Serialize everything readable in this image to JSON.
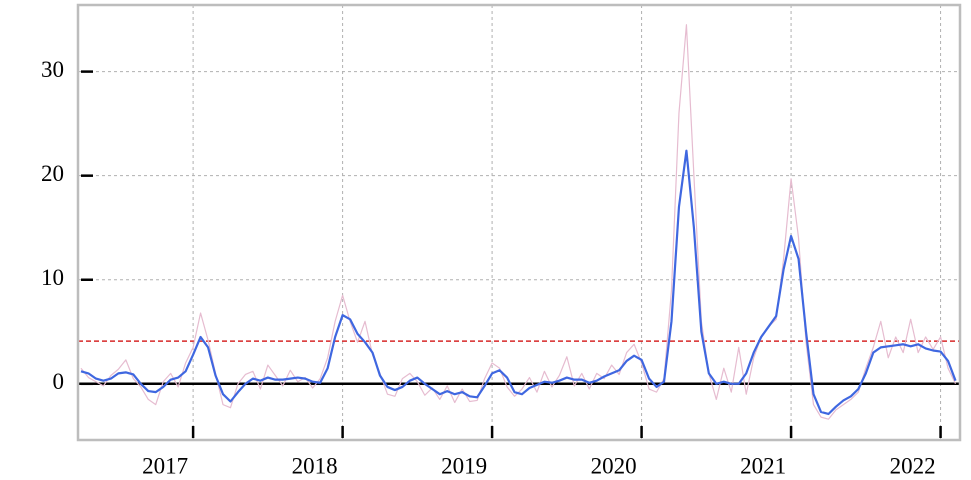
{
  "chart_data": {
    "type": "line",
    "x": [
      2016.25,
      2016.3,
      2016.35,
      2016.4,
      2016.45,
      2016.5,
      2016.55,
      2016.6,
      2016.65,
      2016.7,
      2016.75,
      2016.8,
      2016.85,
      2016.9,
      2016.95,
      2017,
      2017.05,
      2017.1,
      2017.15,
      2017.2,
      2017.25,
      2017.3,
      2017.35,
      2017.4,
      2017.45,
      2017.5,
      2017.55,
      2017.6,
      2017.65,
      2017.7,
      2017.75,
      2017.8,
      2017.85,
      2017.9,
      2017.95,
      2018,
      2018.05,
      2018.1,
      2018.15,
      2018.2,
      2018.25,
      2018.3,
      2018.35,
      2018.4,
      2018.45,
      2018.5,
      2018.55,
      2018.6,
      2018.65,
      2018.7,
      2018.75,
      2018.8,
      2018.85,
      2018.9,
      2018.95,
      2019,
      2019.05,
      2019.1,
      2019.15,
      2019.2,
      2019.25,
      2019.3,
      2019.35,
      2019.4,
      2019.45,
      2019.5,
      2019.55,
      2019.6,
      2019.65,
      2019.7,
      2019.75,
      2019.8,
      2019.85,
      2019.9,
      2019.95,
      2020,
      2020.05,
      2020.1,
      2020.15,
      2020.2,
      2020.25,
      2020.3,
      2020.35,
      2020.4,
      2020.45,
      2020.5,
      2020.55,
      2020.6,
      2020.65,
      2020.7,
      2020.75,
      2020.8,
      2020.85,
      2020.9,
      2020.95,
      2021,
      2021.05,
      2021.1,
      2021.15,
      2021.2,
      2021.25,
      2021.3,
      2021.35,
      2021.4,
      2021.45,
      2021.5,
      2021.55,
      2021.6,
      2021.65,
      2021.7,
      2021.75,
      2021.8,
      2021.85,
      2021.9,
      2021.95,
      2022,
      2022.05,
      2022.1
    ],
    "series": [
      {
        "color": "#e6bcd0",
        "width": 1.2,
        "values": [
          1.5,
          0.6,
          0.2,
          -0.2,
          0.8,
          1.4,
          2.3,
          0.5,
          -0.3,
          -1.5,
          -2.0,
          0.2,
          1.0,
          -0.3,
          2.0,
          3.5,
          6.8,
          4.2,
          1.0,
          -2.0,
          -2.3,
          0.0,
          0.9,
          1.2,
          -0.5,
          1.8,
          0.8,
          -0.2,
          1.3,
          0.2,
          0.6,
          -0.4,
          0.5,
          2.5,
          6.0,
          8.5,
          6.0,
          4.0,
          6.0,
          2.8,
          1.0,
          -1.0,
          -1.2,
          0.5,
          1.0,
          0.2,
          -1.1,
          -0.4,
          -1.5,
          -0.2,
          -1.8,
          -0.5,
          -1.7,
          -1.6,
          0.5,
          2.0,
          1.5,
          -0.3,
          -1.2,
          -0.5,
          0.6,
          -0.8,
          1.2,
          -0.3,
          0.8,
          2.6,
          -0.2,
          1.0,
          -0.5,
          1.0,
          0.5,
          1.8,
          0.9,
          3.0,
          3.8,
          2.0,
          -0.5,
          -0.8,
          0.5,
          9.0,
          26.0,
          34.5,
          20.0,
          6.0,
          1.0,
          -1.5,
          1.5,
          -0.8,
          3.5,
          -1.0,
          2.5,
          4.5,
          5.5,
          6.2,
          12.0,
          19.7,
          14.0,
          4.0,
          -2.0,
          -3.2,
          -3.4,
          -2.5,
          -2.0,
          -1.5,
          -0.8,
          1.5,
          3.5,
          6.0,
          2.5,
          4.5,
          3.0,
          6.2,
          3.0,
          4.5,
          3.3,
          4.5,
          1.5,
          0.0
        ]
      },
      {
        "color": "#3f67e0",
        "width": 2.2,
        "values": [
          1.2,
          1.0,
          0.5,
          0.3,
          0.5,
          1.0,
          1.1,
          0.9,
          0.0,
          -0.7,
          -0.8,
          -0.3,
          0.4,
          0.6,
          1.2,
          2.8,
          4.5,
          3.5,
          0.8,
          -1.0,
          -1.7,
          -0.8,
          0.0,
          0.5,
          0.3,
          0.6,
          0.4,
          0.4,
          0.5,
          0.6,
          0.5,
          0.2,
          0.1,
          1.5,
          4.5,
          6.6,
          6.2,
          4.8,
          4.0,
          3.0,
          0.8,
          -0.3,
          -0.6,
          -0.3,
          0.3,
          0.6,
          0.0,
          -0.5,
          -1.0,
          -0.7,
          -1.0,
          -0.8,
          -1.2,
          -1.3,
          -0.2,
          1.0,
          1.3,
          0.6,
          -0.8,
          -1.0,
          -0.4,
          -0.1,
          0.2,
          0.1,
          0.3,
          0.6,
          0.4,
          0.4,
          0.1,
          0.3,
          0.7,
          1.0,
          1.3,
          2.2,
          2.7,
          2.3,
          0.5,
          -0.3,
          0.2,
          6.0,
          17.0,
          22.4,
          15.0,
          5.0,
          1.0,
          0.0,
          0.2,
          0.0,
          0.0,
          1.0,
          3.0,
          4.5,
          5.5,
          6.5,
          11.0,
          14.2,
          12.0,
          5.0,
          -1.0,
          -2.7,
          -2.9,
          -2.2,
          -1.6,
          -1.2,
          -0.5,
          1.0,
          3.0,
          3.5,
          3.6,
          3.7,
          3.8,
          3.6,
          3.8,
          3.4,
          3.2,
          3.1,
          2.2,
          0.3
        ]
      }
    ],
    "reference_lines": [
      {
        "value": 4.1,
        "color": "#d62728",
        "dashed": true
      },
      {
        "value": 0,
        "color": "#000000",
        "dashed": false
      }
    ],
    "xlim": [
      2016.23,
      2022.13
    ],
    "ylim": [
      -5.4,
      36.4
    ],
    "xticks": [
      2017,
      2018,
      2019,
      2020,
      2021,
      2022
    ],
    "yticks": [
      0,
      10,
      20,
      30
    ],
    "grid": true
  }
}
